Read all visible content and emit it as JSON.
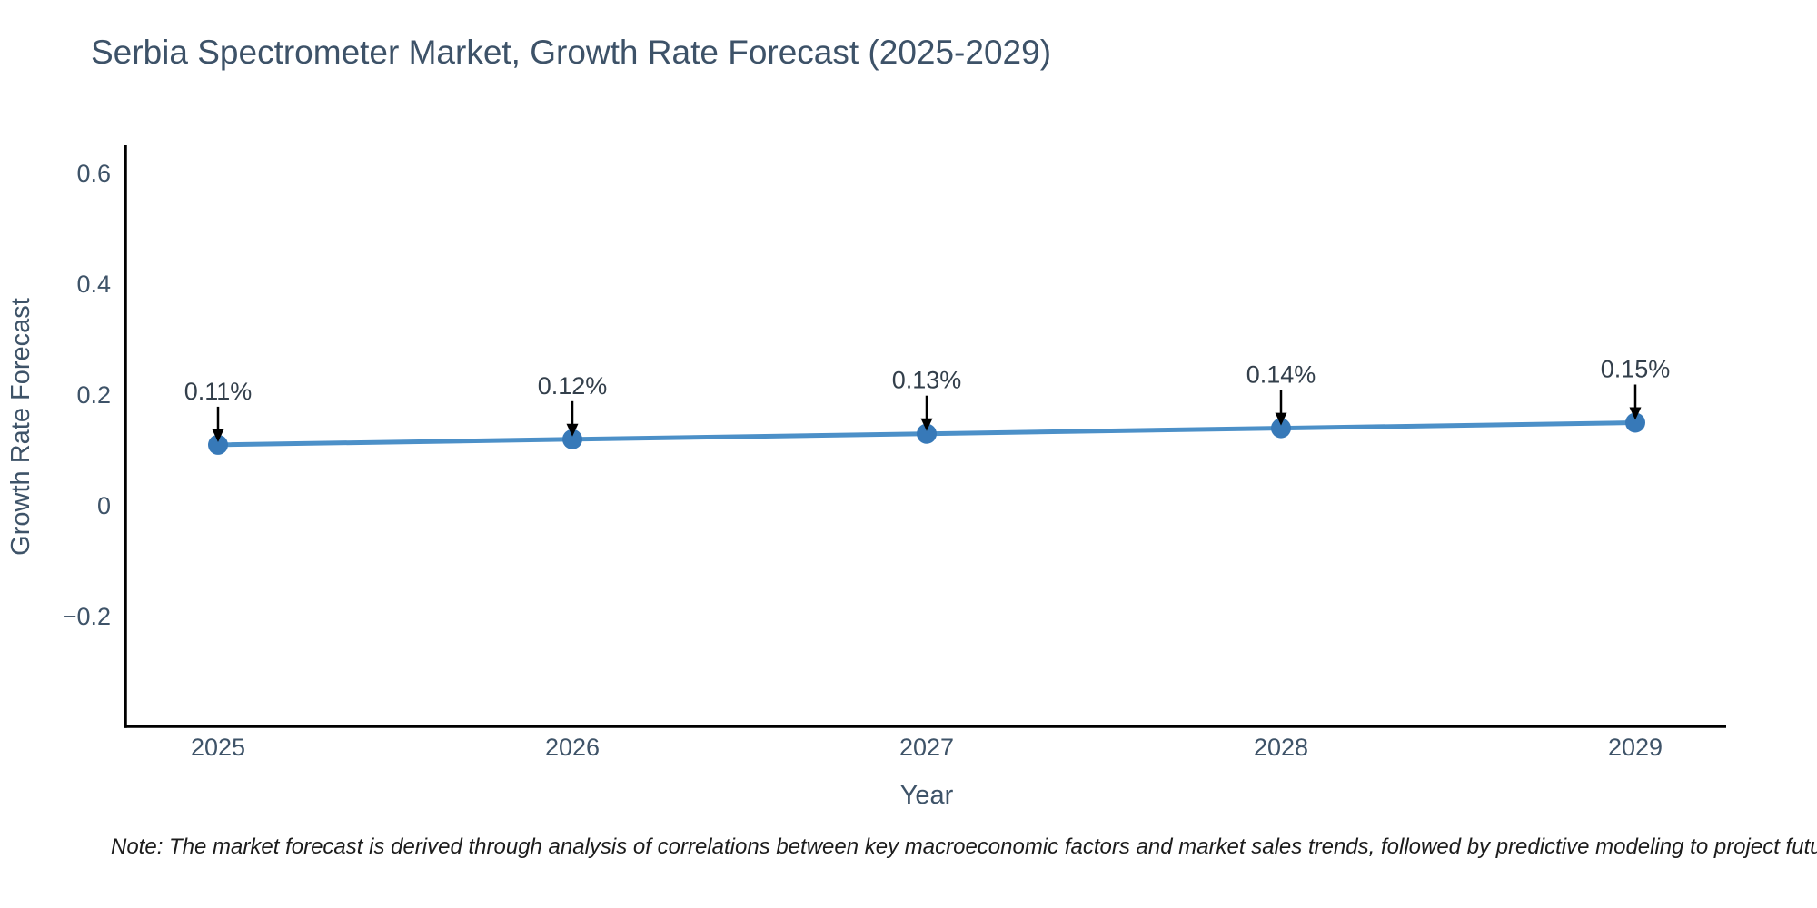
{
  "note": "Note: The market forecast is derived through analysis of correlations between key macroeconomic factors and market sales trends, followed by predictive modeling to project future sales.",
  "chart_data": {
    "type": "line",
    "title": "Serbia Spectrometer Market, Growth Rate Forecast (2025-2029)",
    "xlabel": "Year",
    "ylabel": "Growth Rate Forecast",
    "x": [
      2025,
      2026,
      2027,
      2028,
      2029
    ],
    "series": [
      {
        "name": "Growth Rate Forecast",
        "values": [
          0.11,
          0.12,
          0.13,
          0.14,
          0.15
        ]
      }
    ],
    "point_labels": [
      "0.11%",
      "0.12%",
      "0.13%",
      "0.14%",
      "0.15%"
    ],
    "xtick_labels": [
      "2025",
      "2026",
      "2027",
      "2028",
      "2029"
    ],
    "yticks": [
      -0.2,
      0,
      0.2,
      0.4,
      0.6
    ],
    "ytick_labels": [
      "−0.2",
      "0",
      "0.2",
      "0.4",
      "0.6"
    ],
    "ylim": [
      -0.4,
      0.65
    ],
    "grid": false,
    "legend": false,
    "annotation_arrows": true,
    "colors": {
      "line": "#4c90c8",
      "marker": "#3779b8",
      "axis_spine": "#000000",
      "tick_text": "#3e5368",
      "annotation_text": "#333f4b",
      "arrow": "#000000",
      "title_text": "#3d5268",
      "note_text": "#1c1c1c"
    }
  }
}
